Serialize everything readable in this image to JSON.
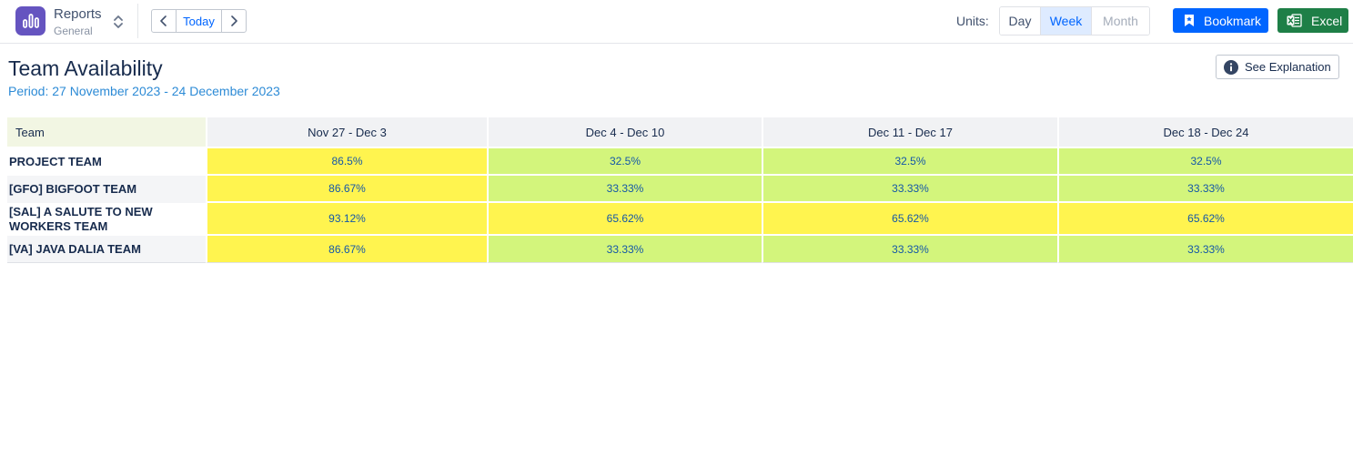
{
  "app": {
    "name": "Reports",
    "subtitle": "General"
  },
  "nav": {
    "today_label": "Today"
  },
  "units": {
    "label": "Units:",
    "options": [
      "Day",
      "Week",
      "Month"
    ],
    "selected": "Week"
  },
  "actions": {
    "bookmark_label": "Bookmark",
    "excel_label": "Excel",
    "explain_label": "See Explanation"
  },
  "report": {
    "title": "Team Availability",
    "period": "Period: 27 November 2023 - 24 December 2023"
  },
  "table": {
    "team_header": "Team",
    "weeks": [
      "Nov 27 - Dec 3",
      "Dec 4 - Dec 10",
      "Dec 11 - Dec 17",
      "Dec 18 - Dec 24"
    ],
    "rows": [
      {
        "team": "PROJECT TEAM",
        "values": [
          "86.5%",
          "32.5%",
          "32.5%",
          "32.5%"
        ],
        "status": [
          "yellow",
          "green",
          "green",
          "green"
        ]
      },
      {
        "team": "[GFO] BIGFOOT TEAM",
        "values": [
          "86.67%",
          "33.33%",
          "33.33%",
          "33.33%"
        ],
        "status": [
          "yellow",
          "green",
          "green",
          "green"
        ]
      },
      {
        "team": "[SAL] A SALUTE TO NEW WORKERS TEAM",
        "values": [
          "93.12%",
          "65.62%",
          "65.62%",
          "65.62%"
        ],
        "status": [
          "yellow",
          "yellow",
          "yellow",
          "yellow"
        ]
      },
      {
        "team": "[VA] JAVA DALIA TEAM",
        "values": [
          "86.67%",
          "33.33%",
          "33.33%",
          "33.33%"
        ],
        "status": [
          "yellow",
          "green",
          "green",
          "green"
        ]
      }
    ]
  },
  "colors": {
    "accent": "#0065ff",
    "excel": "#1e7f47",
    "logo": "#6554c0",
    "cell_yellow": "#fff44f",
    "cell_green": "#d3f57c"
  }
}
